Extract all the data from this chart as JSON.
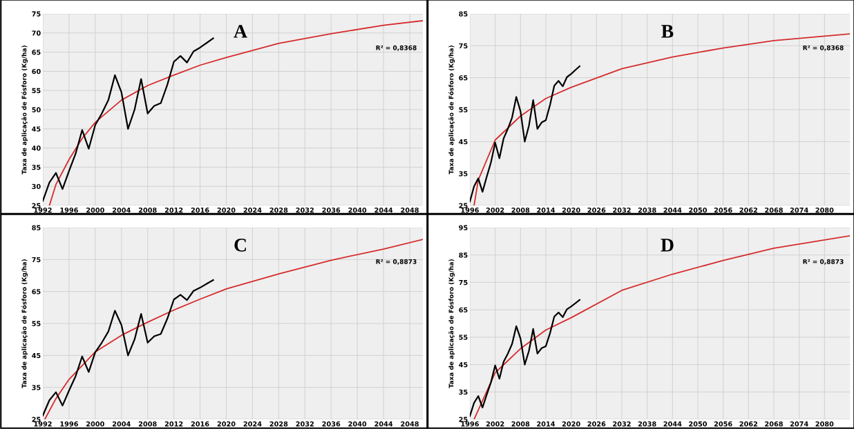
{
  "chart_data": [
    {
      "type": "line",
      "ylabel": "Taxa de aplicação de Fósforo (Kg/ha)",
      "annotations": [
        "A",
        "R² = 0,8368"
      ],
      "xlim": [
        1992,
        2050
      ],
      "xticks": [
        1992,
        1996,
        2000,
        2004,
        2008,
        2012,
        2016,
        2020,
        2024,
        2028,
        2032,
        2036,
        2040,
        2044,
        2048
      ],
      "ylim": [
        25,
        75
      ],
      "yticks": [
        25,
        30,
        35,
        40,
        45,
        50,
        55,
        60,
        65,
        70,
        75
      ],
      "grid": true,
      "marker": "none",
      "line_style": "solid",
      "series": [
        {
          "color": "#000000",
          "x": [
            1992,
            1993,
            1994,
            1995,
            1996,
            1997,
            1998,
            1999,
            2000,
            2001,
            2002,
            2003,
            2004,
            2005,
            2006,
            2007,
            2008,
            2009,
            2010,
            2011,
            2012,
            2013,
            2014,
            2015,
            2016,
            2017,
            2018
          ],
          "values": [
            26.2,
            31,
            33.5,
            29.3,
            34,
            38.5,
            44.7,
            39.8,
            46,
            49,
            52.5,
            59,
            54.5,
            45,
            50,
            58,
            49,
            51,
            51.7,
            56.5,
            62.5,
            64,
            62.3,
            65.2,
            66.2,
            67.4,
            68.6
          ]
        },
        {
          "color": "#d62a2a",
          "x": [
            1993,
            1994,
            1996,
            1998,
            2000,
            2004,
            2008,
            2012,
            2016,
            2020,
            2028,
            2036,
            2044,
            2050
          ],
          "values": [
            25,
            30.5,
            37,
            42.5,
            46.7,
            52.5,
            56.3,
            59,
            61.6,
            63.6,
            67.3,
            69.8,
            72,
            73.2
          ]
        }
      ]
    },
    {
      "type": "line",
      "ylabel": "Taxa de aplicação de Fósforo (Kg/ha)",
      "annotations": [
        "B",
        "R² = 0,8368"
      ],
      "xlim": [
        1996,
        2086
      ],
      "xticks": [
        1996,
        2002,
        2008,
        2014,
        2020,
        2026,
        2032,
        2038,
        2044,
        2050,
        2056,
        2062,
        2068,
        2074,
        2080
      ],
      "ylim": [
        25,
        85
      ],
      "yticks": [
        25,
        35,
        45,
        55,
        65,
        75,
        85
      ],
      "grid": true,
      "marker": "none",
      "line_style": "solid",
      "series": [
        {
          "color": "#000000",
          "x": [
            1996,
            1997,
            1998,
            1999,
            2000,
            2001,
            2002,
            2003,
            2004,
            2005,
            2006,
            2007,
            2008,
            2009,
            2010,
            2011,
            2012,
            2013,
            2014,
            2015,
            2016,
            2017,
            2018,
            2019,
            2020,
            2021,
            2022
          ],
          "values": [
            26.2,
            31,
            33.5,
            29.3,
            34,
            38.5,
            44.7,
            39.8,
            46,
            49,
            52.5,
            59,
            54.5,
            45,
            50,
            58,
            49,
            51,
            51.7,
            56.5,
            62.5,
            64,
            62.3,
            65.2,
            66.2,
            67.4,
            68.6
          ]
        },
        {
          "color": "#d62a2a",
          "x": [
            1997,
            1998,
            2002,
            2008,
            2014,
            2020,
            2032,
            2044,
            2056,
            2068,
            2086
          ],
          "values": [
            25,
            33,
            45.5,
            53,
            58.5,
            62,
            67.8,
            71.5,
            74.3,
            76.6,
            78.7
          ]
        }
      ]
    },
    {
      "type": "line",
      "ylabel": "Taxa de aplicação de Fósforo (Kg/ha)",
      "annotations": [
        "C",
        "R² = 0,8873"
      ],
      "xlim": [
        1992,
        2050
      ],
      "xticks": [
        1992,
        1996,
        2000,
        2004,
        2008,
        2012,
        2016,
        2020,
        2024,
        2028,
        2032,
        2036,
        2040,
        2044,
        2048
      ],
      "ylim": [
        25,
        85
      ],
      "yticks": [
        25,
        35,
        45,
        55,
        65,
        75,
        85
      ],
      "grid": true,
      "marker": "none",
      "line_style": "solid",
      "series": [
        {
          "color": "#000000",
          "x": [
            1992,
            1993,
            1994,
            1995,
            1996,
            1997,
            1998,
            1999,
            2000,
            2001,
            2002,
            2003,
            2004,
            2005,
            2006,
            2007,
            2008,
            2009,
            2010,
            2011,
            2012,
            2013,
            2014,
            2015,
            2016,
            2017,
            2018
          ],
          "values": [
            26.2,
            31,
            33.5,
            29.3,
            34,
            38.5,
            44.7,
            39.8,
            46,
            49,
            52.5,
            59,
            54.5,
            45,
            50,
            58,
            49,
            51,
            51.7,
            56.5,
            62.5,
            64,
            62.3,
            65.2,
            66.2,
            67.4,
            68.6
          ]
        },
        {
          "color": "#d62a2a",
          "x": [
            1992.3,
            1994,
            1996,
            2000,
            2004,
            2008,
            2012,
            2016,
            2020,
            2028,
            2036,
            2044,
            2050
          ],
          "values": [
            25,
            31.5,
            37.5,
            46.1,
            51.3,
            55.4,
            59.2,
            62.6,
            65.8,
            70.5,
            74.8,
            78.3,
            81.3
          ]
        }
      ]
    },
    {
      "type": "line",
      "ylabel": "Taxa de aplicação de Fósforo (Kg/ha)",
      "annotations": [
        "D",
        "R² = 0,8873"
      ],
      "xlim": [
        1996,
        2086
      ],
      "xticks": [
        1996,
        2002,
        2008,
        2014,
        2020,
        2026,
        2032,
        2038,
        2044,
        2050,
        2056,
        2062,
        2068,
        2074,
        2080
      ],
      "ylim": [
        25,
        95
      ],
      "yticks": [
        25,
        35,
        45,
        55,
        65,
        75,
        85,
        95
      ],
      "grid": true,
      "marker": "none",
      "line_style": "solid",
      "series": [
        {
          "color": "#000000",
          "x": [
            1996,
            1997,
            1998,
            1999,
            2000,
            2001,
            2002,
            2003,
            2004,
            2005,
            2006,
            2007,
            2008,
            2009,
            2010,
            2011,
            2012,
            2013,
            2014,
            2015,
            2016,
            2017,
            2018,
            2019,
            2020,
            2021,
            2022
          ],
          "values": [
            26.2,
            31,
            33.5,
            29.3,
            34,
            38.5,
            44.7,
            39.8,
            46,
            49,
            52.5,
            59,
            54.5,
            45,
            50,
            58,
            49,
            51,
            51.7,
            56.5,
            62.5,
            64,
            62.3,
            65.2,
            66.2,
            67.4,
            68.6
          ]
        },
        {
          "color": "#d62a2a",
          "x": [
            1997,
            2002,
            2008,
            2014,
            2020,
            2032,
            2044,
            2056,
            2068,
            2086
          ],
          "values": [
            25,
            42,
            50.8,
            57.6,
            62.1,
            72.1,
            78,
            83,
            87.5,
            92
          ]
        }
      ]
    }
  ]
}
